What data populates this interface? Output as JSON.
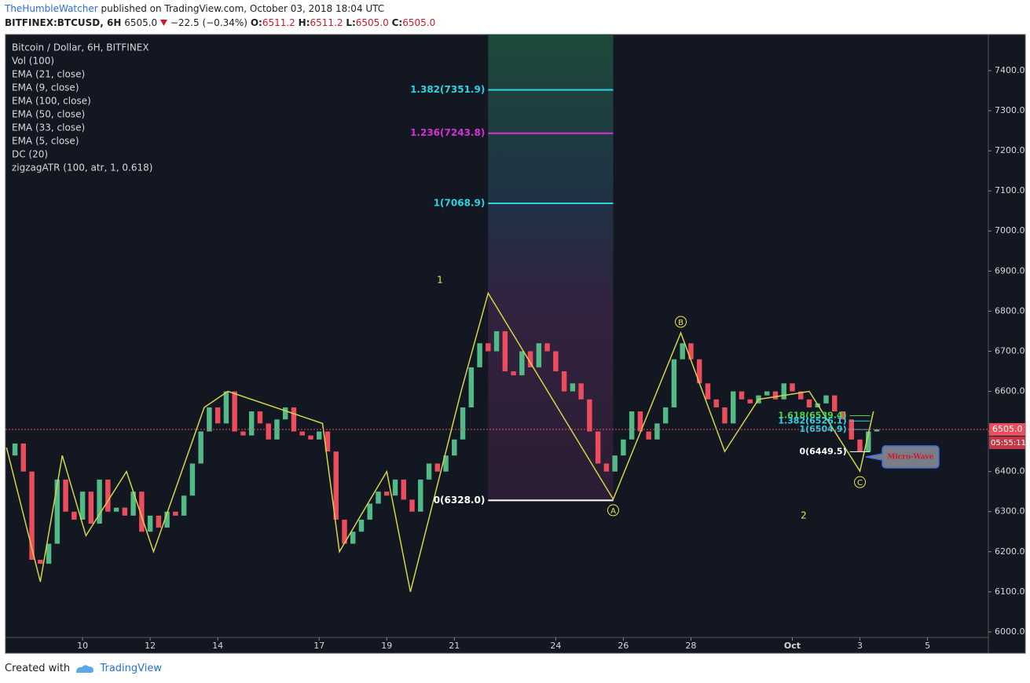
{
  "header": {
    "author": "TheHumbleWatcher",
    "published": "published on TradingView.com, October 03, 2018 18:04 UTC",
    "symbol": "BITFINEX:BTCUSD, 6H",
    "last": "6505.0",
    "change": "−22.5 (−0.34%)",
    "ohlc": [
      {
        "key": "O:",
        "value": "6511.2"
      },
      {
        "key": "H:",
        "value": "6511.2"
      },
      {
        "key": "L:",
        "value": "6505.0"
      },
      {
        "key": "C:",
        "value": "6505.0"
      }
    ]
  },
  "chart_data": {
    "type": "candlestick",
    "title": "Bitcoin / Dollar, 6H, BITFINEX",
    "indicators": [
      "Vol (100)",
      "EMA (21, close)",
      "EMA (9, close)",
      "EMA (100, close)",
      "EMA (50, close)",
      "EMA (33, close)",
      "EMA (5, close)",
      "DC (20)",
      "zigzagATR (100, atr, 1, 0.618)"
    ],
    "up_color": "#53b987",
    "down_color": "#eb4d5c",
    "x": [
      7.75,
      8,
      8.25,
      8.5,
      8.75,
      9,
      9.25,
      9.5,
      9.75,
      10,
      10.25,
      10.5,
      10.75,
      11,
      11.25,
      11.5,
      11.75,
      12,
      12.25,
      12.5,
      12.75,
      13,
      13.25,
      13.5,
      13.75,
      14,
      14.25,
      14.5,
      14.75,
      15,
      15.25,
      15.5,
      15.75,
      16,
      16.25,
      16.5,
      16.75,
      17,
      17.25,
      17.5,
      17.75,
      18,
      18.25,
      18.5,
      18.75,
      19,
      19.25,
      19.5,
      19.75,
      20,
      20.25,
      20.5,
      20.75,
      21,
      21.25,
      21.5,
      21.75,
      22,
      22.25,
      22.5,
      22.75,
      23,
      23.25,
      23.5,
      23.75,
      24,
      24.25,
      24.5,
      24.75,
      25,
      25.25,
      25.5,
      25.75,
      26,
      26.25,
      26.5,
      26.75,
      27,
      27.25,
      27.5,
      27.75,
      28,
      28.25,
      28.5,
      28.75,
      29,
      29.25,
      29.5,
      29.75,
      30,
      30.25,
      30.5,
      30.75,
      31,
      31.25,
      31.5,
      31.75,
      32,
      32.25,
      32.5,
      32.75,
      33,
      33.25,
      33.5
    ],
    "close": [
      6440,
      6470,
      6400,
      6180,
      6170,
      6220,
      6380,
      6300,
      6280,
      6350,
      6270,
      6380,
      6300,
      6310,
      6290,
      6350,
      6250,
      6290,
      6260,
      6300,
      6290,
      6340,
      6420,
      6500,
      6560,
      6520,
      6600,
      6500,
      6490,
      6550,
      6520,
      6480,
      6530,
      6560,
      6500,
      6490,
      6480,
      6500,
      6450,
      6280,
      6220,
      6250,
      6280,
      6320,
      6350,
      6340,
      6380,
      6330,
      6300,
      6380,
      6420,
      6400,
      6440,
      6480,
      6560,
      6660,
      6720,
      6700,
      6750,
      6650,
      6640,
      6700,
      6660,
      6720,
      6700,
      6650,
      6600,
      6620,
      6580,
      6500,
      6420,
      6400,
      6440,
      6480,
      6550,
      6500,
      6480,
      6520,
      6560,
      6680,
      6720,
      6680,
      6620,
      6580,
      6560,
      6520,
      6600,
      6580,
      6570,
      6590,
      6600,
      6580,
      6620,
      6600,
      6580,
      6560,
      6570,
      6590,
      6550,
      6530,
      6480,
      6450,
      6500,
      6505
    ],
    "xlim": [
      7.72,
      36.8
    ],
    "xticks": [
      10,
      12,
      14,
      17,
      19,
      21,
      24,
      26,
      28,
      {
        "value": 31,
        "label": "Oct"
      },
      {
        "value": 33,
        "label": "3"
      },
      {
        "value": 35,
        "label": "5"
      }
    ],
    "ylim": [
      5947,
      7490
    ],
    "yticks": [
      {
        "value": 6000,
        "label": "6000.0"
      },
      {
        "value": 6100,
        "label": "6100.0"
      },
      {
        "value": 6200,
        "label": "6200.0"
      },
      {
        "value": 6300,
        "label": "6300.0"
      },
      {
        "value": 6400,
        "label": "6400.0"
      },
      {
        "value": 6500,
        "label": "6500.0"
      },
      {
        "value": 6600,
        "label": "6600.0"
      },
      {
        "value": 6700,
        "label": "6700.0"
      },
      {
        "value": 6800,
        "label": "6800.0"
      },
      {
        "value": 6900,
        "label": "6900.0"
      },
      {
        "value": 7000,
        "label": "7000.0"
      },
      {
        "value": 7100,
        "label": "7100.0"
      },
      {
        "value": 7200,
        "label": "7200.0"
      },
      {
        "value": 7300,
        "label": "7300.0"
      },
      {
        "value": 7400,
        "label": "7400.0"
      }
    ],
    "zigzag": {
      "color": "#d4d44a",
      "x": [
        7.75,
        8.75,
        9.4,
        10.1,
        11.3,
        12.1,
        13.6,
        14.3,
        17.1,
        17.6,
        19.0,
        19.7,
        21.2,
        22.0,
        25.7,
        27.7,
        29.0,
        30.0,
        31.5,
        33.0,
        33.4
      ],
      "y": [
        6460,
        6125,
        6440,
        6240,
        6400,
        6200,
        6560,
        6600,
        6520,
        6200,
        6400,
        6100,
        6600,
        6845,
        6331,
        6746,
        6450,
        6580,
        6600,
        6401,
        6550
      ],
      "labels": [
        null,
        null,
        null,
        null,
        null,
        null,
        null,
        null,
        null,
        null,
        null,
        null,
        null,
        null,
        "A",
        "B",
        null,
        null,
        null,
        "C",
        null
      ]
    },
    "fib_tools": [
      {
        "x": [
          22.0,
          25.7
        ],
        "levels": [
          {
            "label": "1.382(7351.9)",
            "value": 7351.9,
            "color": "#2ad4e0"
          },
          {
            "label": "1.236(7243.8)",
            "value": 7243.8,
            "color": "#d630d6"
          },
          {
            "label": "1(7068.9)",
            "value": 7068.9,
            "color": "#2ad4e0"
          },
          {
            "label": "0(6328.0)",
            "value": 6328.0,
            "color": "#ffffff"
          }
        ]
      },
      {
        "x": [
          32.7,
          33.3
        ],
        "levels": [
          {
            "label": "1.618(6539.4)",
            "value": 6539.4,
            "color": "#4cd44c"
          },
          {
            "label": "1.382(6526.1)",
            "value": 6526.1,
            "color": "#2ad4e0"
          },
          {
            "label": "1(6504.9)",
            "value": 6504.9,
            "color": "#2ad4e0"
          },
          {
            "label": "0(6449.5)",
            "value": 6449.5,
            "color": "#ffffff"
          }
        ]
      }
    ],
    "wave_1": "1",
    "wave_2": "2",
    "last_price": {
      "value": 6505.0,
      "label": "6505.0"
    },
    "countdown": "05:55:11",
    "note": "Micro-Wave"
  },
  "footer": {
    "created": "Created with",
    "brand": "TradingView"
  }
}
